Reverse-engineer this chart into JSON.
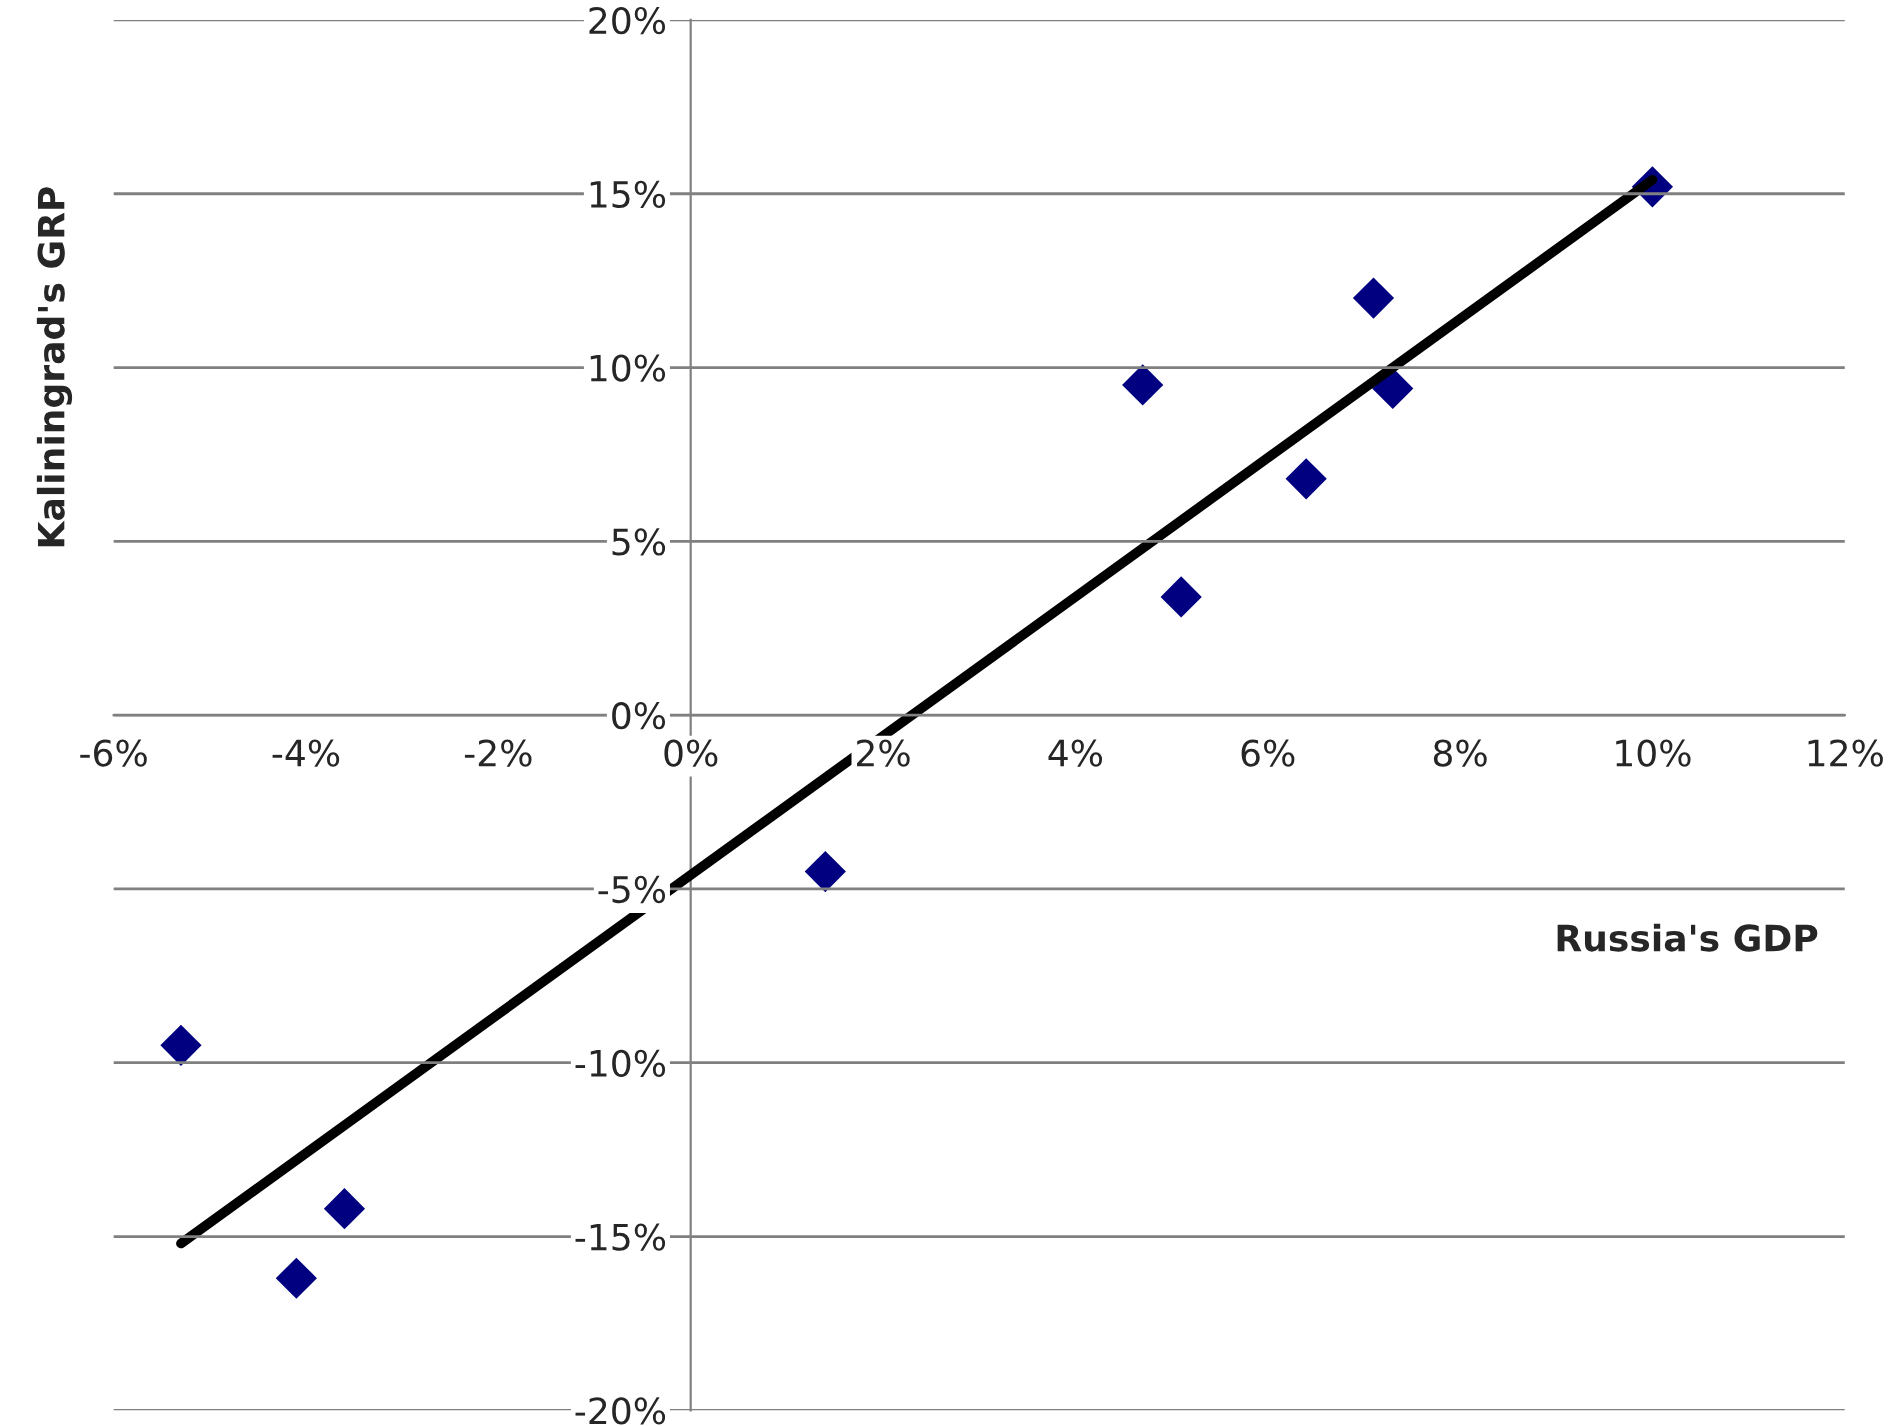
{
  "chart_data": {
    "type": "scatter",
    "xlabel": "Russia's GDP",
    "ylabel": "Kaliningrad's GRP",
    "x": [
      -5.3,
      -4.1,
      -3.6,
      1.4,
      4.7,
      5.1,
      6.4,
      7.1,
      7.3,
      10.0
    ],
    "series": [
      {
        "type": "scatter",
        "color": "#000080",
        "marker": "diamond",
        "values": [
          -9.5,
          -16.2,
          -14.2,
          -4.5,
          9.5,
          3.4,
          6.8,
          12.0,
          9.4,
          15.2
        ]
      },
      {
        "type": "line",
        "color": "#000000",
        "marker": "none",
        "line_style": "solid",
        "x": [
          -5.3,
          10.0
        ],
        "values": [
          -15.2,
          15.4
        ]
      }
    ],
    "xlim": [
      -6,
      12
    ],
    "ylim": [
      -20,
      20
    ],
    "xticks": [
      {
        "value": -6,
        "label": "-6%"
      },
      {
        "value": -4,
        "label": "-4%"
      },
      {
        "value": -2,
        "label": "-2%"
      },
      {
        "value": 0,
        "label": "0%"
      },
      {
        "value": 2,
        "label": "2%"
      },
      {
        "value": 4,
        "label": "4%"
      },
      {
        "value": 6,
        "label": "6%"
      },
      {
        "value": 8,
        "label": "8%"
      },
      {
        "value": 10,
        "label": "10%"
      },
      {
        "value": 12,
        "label": "12%"
      }
    ],
    "yticks": [
      {
        "value": -20,
        "label": "-20%"
      },
      {
        "value": -15,
        "label": "-15%"
      },
      {
        "value": -10,
        "label": "-10%"
      },
      {
        "value": -5,
        "label": "-5%"
      },
      {
        "value": 0,
        "label": "0%"
      },
      {
        "value": 5,
        "label": "5%"
      },
      {
        "value": 10,
        "label": "10%"
      },
      {
        "value": 15,
        "label": "15%"
      },
      {
        "value": 20,
        "label": "20%"
      }
    ],
    "grid": "y",
    "legend": false
  }
}
